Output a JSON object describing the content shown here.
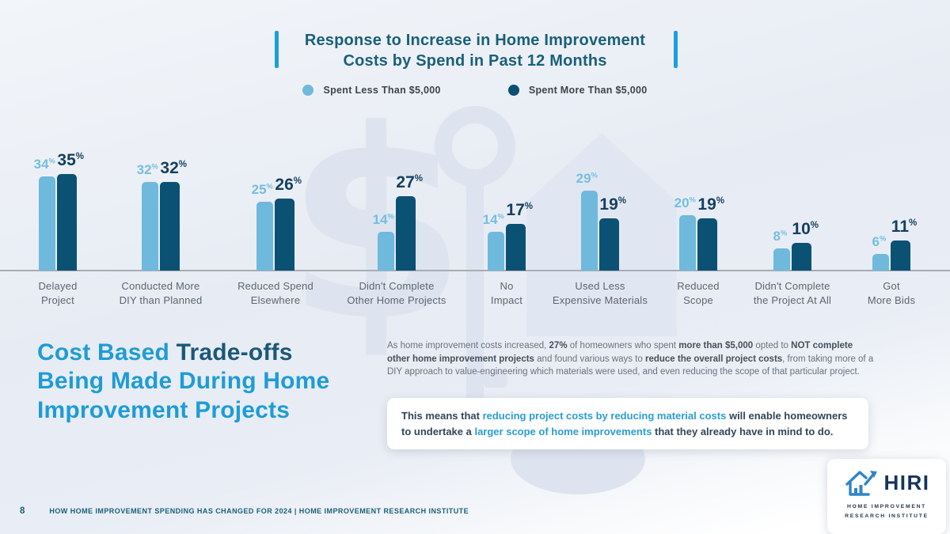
{
  "slide": {
    "title": {
      "line1": "Response to Increase in Home Improvement",
      "line2": "Costs by Spend in Past 12 Months"
    },
    "legend": [
      {
        "label": "Spent Less Than $5,000",
        "color": "#6fb9dc"
      },
      {
        "label": "Spent More Than $5,000",
        "color": "#0b4f72"
      }
    ]
  },
  "chart_data": {
    "type": "bar",
    "title": "Response to Increase in Home Improvement Costs by Spend in Past 12 Months",
    "unit": "%",
    "grid": false,
    "legend_position": "top",
    "ylim": [
      0,
      40
    ],
    "categories": [
      "Delayed Project",
      "Conducted More DIY than Planned",
      "Reduced Spend Elsewhere",
      "Didn't Complete Other Home Projects",
      "No Impact",
      "Used Less Expensive Materials",
      "Reduced Scope",
      "Didn't Complete the Project At All",
      "Got More Bids"
    ],
    "category_lines": [
      [
        "Delayed",
        "Project"
      ],
      [
        "Conducted More",
        "DIY than Planned"
      ],
      [
        "Reduced Spend",
        "Elsewhere"
      ],
      [
        "Didn't Complete",
        "Other Home Projects"
      ],
      [
        "No",
        "Impact"
      ],
      [
        "Used Less",
        "Expensive Materials"
      ],
      [
        "Reduced",
        "Scope"
      ],
      [
        "Didn't Complete",
        "the Project At All"
      ],
      [
        "Got",
        "More Bids"
      ]
    ],
    "series": [
      {
        "name": "Spent Less Than $5,000",
        "color": "#6fb9dc",
        "label_color": "#74bedf",
        "values": [
          34,
          32,
          25,
          14,
          14,
          29,
          20,
          8,
          6
        ]
      },
      {
        "name": "Spent More Than $5,000",
        "color": "#0b5174",
        "label_color": "#143f5e",
        "values": [
          35,
          32,
          26,
          27,
          17,
          19,
          19,
          10,
          11
        ]
      }
    ]
  },
  "section": {
    "heading_lines": [
      [
        {
          "text": "Cost Based ",
          "color": "blue"
        },
        {
          "text": "Trade-offs",
          "color": "dark"
        }
      ],
      [
        {
          "text": "Being Made During Home",
          "color": "blue"
        }
      ],
      [
        {
          "text": "Improvement Projects",
          "color": "blue"
        }
      ]
    ],
    "paragraph": [
      {
        "text": "As home improvement costs increased, ",
        "bold": false
      },
      {
        "text": "27%",
        "bold": true
      },
      {
        "text": " of homeowners who spent ",
        "bold": false
      },
      {
        "text": "more than $5,000",
        "bold": true
      },
      {
        "text": " opted to ",
        "bold": false
      },
      {
        "text": "NOT complete other home improvement projects",
        "bold": true
      },
      {
        "text": " and found various ways to ",
        "bold": false
      },
      {
        "text": "reduce the overall project costs",
        "bold": true
      },
      {
        "text": ", from taking more of a DIY approach to value-engineering which materials were used, and even reducing the scope of that particular project.",
        "bold": false
      }
    ],
    "callout": [
      {
        "text": "This means that ",
        "color": "dark"
      },
      {
        "text": "reducing project costs by reducing material costs",
        "color": "blue"
      },
      {
        "text": " will enable homeowners to undertake a ",
        "color": "dark"
      },
      {
        "text": "larger scope of home improvements",
        "color": "blue"
      },
      {
        "text": " that they already have in mind to do.",
        "color": "dark"
      }
    ]
  },
  "footer": {
    "page_number": "8",
    "text": "HOW HOME IMPROVEMENT SPENDING HAS CHANGED FOR 2024  |  HOME IMPROVEMENT RESEARCH INSTITUTE"
  },
  "logo": {
    "name": "HIRI",
    "subtitle_line1": "HOME IMPROVEMENT",
    "subtitle_line2": "RESEARCH INSTITUTE"
  },
  "colors": {
    "accent_bar": "#1d9fd8",
    "title_text": "#19607a",
    "heading_blue": "#1e9cd6",
    "heading_dark": "#1a5878",
    "callout_blue": "#2a9cd2",
    "bar_light": "#6fb9dc",
    "bar_dark": "#0b5174",
    "watermark": "#dde4ef"
  }
}
